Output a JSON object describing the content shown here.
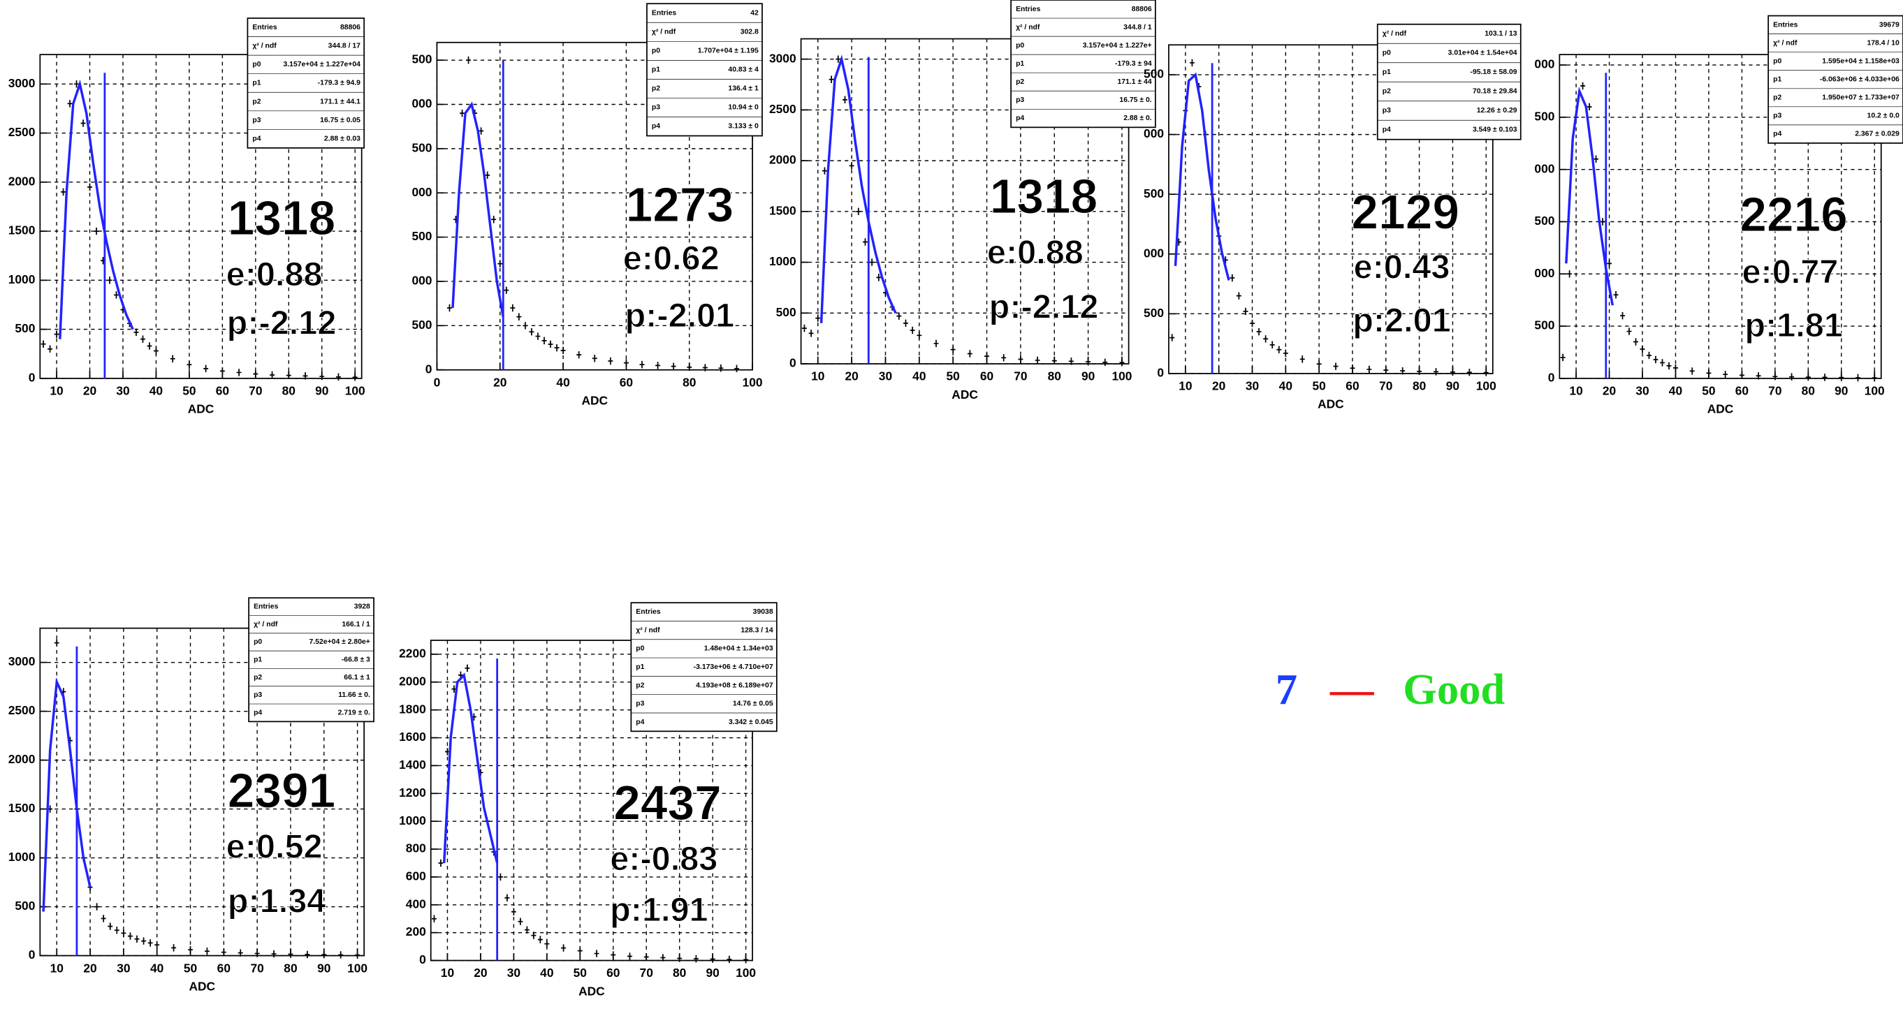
{
  "chart_data": [
    {
      "type": "histogram",
      "x_label": "ADC",
      "xlim": [
        5,
        102
      ],
      "xticks": [
        10,
        20,
        30,
        40,
        50,
        60,
        70,
        80,
        90,
        100
      ],
      "ylim": [
        0,
        3300
      ],
      "yticks": [
        0,
        500,
        1000,
        1500,
        2000,
        2500,
        3000
      ],
      "grid": true,
      "x": [
        6,
        8,
        10,
        12,
        14,
        16,
        18,
        20,
        22,
        24,
        26,
        28,
        30,
        32,
        34,
        36,
        38,
        40,
        45,
        50,
        55,
        60,
        65,
        70,
        75,
        80,
        85,
        90,
        95,
        100
      ],
      "values": [
        350,
        300,
        450,
        1900,
        2800,
        3000,
        2600,
        1950,
        1500,
        1200,
        1000,
        850,
        700,
        560,
        470,
        400,
        330,
        280,
        200,
        140,
        100,
        75,
        60,
        45,
        35,
        30,
        25,
        20,
        15,
        12
      ],
      "fit": {
        "color": "#2222ff",
        "x": [
          11,
          13,
          15,
          17,
          19,
          21,
          23,
          25,
          27,
          29,
          31,
          33
        ],
        "values": [
          400,
          1900,
          2800,
          3000,
          2700,
          2200,
          1750,
          1400,
          1100,
          850,
          650,
          500
        ]
      },
      "marker": 24.5,
      "stats": [
        [
          "Entries",
          "88806"
        ],
        [
          "χ² / ndf",
          "344.8 / 17"
        ],
        [
          "p0",
          "3.157e+04 ± 1.227e+04"
        ],
        [
          "p1",
          "-179.3 ± 94.9"
        ],
        [
          "p2",
          "171.1 ± 44.1"
        ],
        [
          "p3",
          "16.75 ± 0.05"
        ],
        [
          "p4",
          "2.88 ± 0.03"
        ]
      ],
      "annotations": [
        "1318",
        "e:0.88",
        "p:-2.12"
      ]
    },
    {
      "type": "histogram",
      "x_label": "ADC",
      "xlim": [
        0,
        100
      ],
      "xticks": [
        0,
        20,
        40,
        60,
        80,
        100
      ],
      "ylim": [
        0,
        3700
      ],
      "yticks": [
        0,
        500,
        {
          "value": 1000,
          "label": "000"
        },
        {
          "value": 1500,
          "label": "500"
        },
        {
          "value": 2000,
          "label": "000"
        },
        {
          "value": 2500,
          "label": "500"
        },
        {
          "value": 3000,
          "label": "000"
        },
        {
          "value": 3500,
          "label": "500"
        }
      ],
      "grid": true,
      "x": [
        4,
        6,
        8,
        10,
        12,
        14,
        16,
        18,
        20,
        22,
        24,
        26,
        28,
        30,
        32,
        34,
        36,
        38,
        40,
        45,
        50,
        55,
        60,
        65,
        70,
        75,
        80,
        85,
        90,
        95
      ],
      "values": [
        700,
        1700,
        2900,
        3500,
        2900,
        2700,
        2200,
        1700,
        1200,
        900,
        700,
        600,
        500,
        430,
        380,
        330,
        290,
        250,
        220,
        170,
        130,
        100,
        80,
        60,
        50,
        40,
        30,
        25,
        20,
        15
      ],
      "fit": {
        "color": "#2222ff",
        "x": [
          5,
          7,
          9,
          11,
          13,
          15,
          17,
          19,
          21
        ],
        "values": [
          700,
          2000,
          2900,
          3000,
          2700,
          2200,
          1600,
          1000,
          600
        ]
      },
      "marker": 21,
      "stats": [
        [
          "Entries",
          "42"
        ],
        [
          "χ² / ndf",
          "302.8"
        ],
        [
          "p0",
          "1.707e+04 ± 1.195"
        ],
        [
          "p1",
          "40.83 ± 4"
        ],
        [
          "p2",
          "136.4 ± 1"
        ],
        [
          "p3",
          "10.94 ± 0"
        ],
        [
          "p4",
          "3.133 ± 0"
        ]
      ],
      "annotations": [
        "1273",
        "e:0.62",
        "p:-2.01"
      ]
    },
    {
      "type": "histogram",
      "x_label": "ADC",
      "xlim": [
        5,
        102
      ],
      "xticks": [
        10,
        20,
        30,
        40,
        50,
        60,
        70,
        80,
        90,
        100
      ],
      "ylim": [
        0,
        3200
      ],
      "yticks": [
        0,
        500,
        1000,
        1500,
        2000,
        2500,
        3000
      ],
      "grid": true,
      "x": [
        6,
        8,
        10,
        12,
        14,
        16,
        18,
        20,
        22,
        24,
        26,
        28,
        30,
        32,
        34,
        36,
        38,
        40,
        45,
        50,
        55,
        60,
        65,
        70,
        75,
        80,
        85,
        90,
        95,
        100
      ],
      "values": [
        350,
        300,
        450,
        1900,
        2800,
        3000,
        2600,
        1950,
        1500,
        1200,
        1000,
        850,
        700,
        560,
        470,
        400,
        330,
        280,
        200,
        140,
        100,
        75,
        60,
        45,
        35,
        30,
        25,
        20,
        15,
        12
      ],
      "fit": {
        "color": "#2222ff",
        "x": [
          11,
          13,
          15,
          17,
          19,
          21,
          23,
          25,
          27,
          29,
          31,
          33
        ],
        "values": [
          400,
          1900,
          2800,
          3000,
          2700,
          2200,
          1750,
          1400,
          1100,
          850,
          650,
          500
        ]
      },
      "marker": 25,
      "stats": [
        [
          "Entries",
          "88806"
        ],
        [
          "χ² / ndf",
          "344.8 / 1"
        ],
        [
          "p0",
          "3.157e+04 ± 1.227e+"
        ],
        [
          "p1",
          "-179.3 ± 94"
        ],
        [
          "p2",
          "171.1 ± 44"
        ],
        [
          "p3",
          "16.75 ± 0."
        ],
        [
          "p4",
          "2.88 ± 0."
        ]
      ],
      "annotations": [
        "1318",
        "e:0.88",
        "p:-2.12"
      ]
    },
    {
      "type": "histogram",
      "x_label": "ADC",
      "xlim": [
        5,
        102
      ],
      "xticks": [
        10,
        20,
        30,
        40,
        50,
        60,
        70,
        80,
        90,
        100
      ],
      "ylim": [
        0,
        2750
      ],
      "yticks": [
        0,
        500,
        {
          "value": 1000,
          "label": "000"
        },
        {
          "value": 1500,
          "label": "500"
        },
        {
          "value": 2000,
          "label": "000"
        },
        {
          "value": 2500,
          "label": "500"
        }
      ],
      "grid": true,
      "x": [
        6,
        8,
        10,
        12,
        14,
        16,
        18,
        20,
        22,
        24,
        26,
        28,
        30,
        32,
        34,
        36,
        38,
        40,
        45,
        50,
        55,
        60,
        65,
        70,
        75,
        80,
        85,
        90,
        95,
        100
      ],
      "values": [
        300,
        1100,
        2200,
        2600,
        2400,
        2000,
        1500,
        1150,
        950,
        800,
        650,
        520,
        420,
        350,
        290,
        240,
        200,
        170,
        120,
        80,
        60,
        45,
        35,
        28,
        22,
        18,
        15,
        12,
        10,
        8
      ],
      "fit": {
        "color": "#2222ff",
        "x": [
          7,
          9,
          11,
          13,
          15,
          17,
          19,
          21,
          23
        ],
        "values": [
          900,
          1900,
          2450,
          2500,
          2200,
          1700,
          1300,
          1000,
          780
        ]
      },
      "marker": 18,
      "stats": [
        [
          "χ² / ndf",
          "103.1 / 13"
        ],
        [
          "p0",
          "3.01e+04 ± 1.54e+04"
        ],
        [
          "p1",
          "-95.18 ± 58.09"
        ],
        [
          "p2",
          "70.18 ± 29.84"
        ],
        [
          "p3",
          "12.26 ± 0.29"
        ],
        [
          "p4",
          "3.549 ± 0.103"
        ]
      ],
      "annotations": [
        "2129",
        "e:0.43",
        "p:2.01"
      ]
    },
    {
      "type": "histogram",
      "x_label": "ADC",
      "xlim": [
        5,
        102
      ],
      "xticks": [
        10,
        20,
        30,
        40,
        50,
        60,
        70,
        80,
        90,
        100
      ],
      "ylim": [
        0,
        3100
      ],
      "yticks": [
        0,
        500,
        {
          "value": 1000,
          "label": "000"
        },
        {
          "value": 1500,
          "label": "500"
        },
        {
          "value": 2000,
          "label": "000"
        },
        {
          "value": 2500,
          "label": "500"
        },
        {
          "value": 3000,
          "label": "000"
        }
      ],
      "grid": true,
      "x": [
        6,
        8,
        10,
        12,
        14,
        16,
        18,
        20,
        22,
        24,
        26,
        28,
        30,
        32,
        34,
        36,
        38,
        40,
        45,
        50,
        55,
        60,
        65,
        70,
        75,
        80,
        85,
        90,
        95,
        100
      ],
      "values": [
        200,
        1000,
        2500,
        2800,
        2600,
        2100,
        1500,
        1100,
        800,
        600,
        450,
        350,
        280,
        220,
        180,
        150,
        120,
        100,
        70,
        50,
        38,
        30,
        24,
        18,
        15,
        12,
        10,
        8,
        6,
        5
      ],
      "fit": {
        "color": "#2222ff",
        "x": [
          7,
          9,
          11,
          13,
          15,
          17,
          19,
          21
        ],
        "values": [
          1100,
          2300,
          2750,
          2600,
          2100,
          1500,
          1050,
          700
        ]
      },
      "marker": 19,
      "stats": [
        [
          "Entries",
          "39679"
        ],
        [
          "χ² / ndf",
          "178.4 / 10"
        ],
        [
          "p0",
          "1.595e+04 ± 1.158e+03"
        ],
        [
          "p1",
          "-6.063e+06 ± 4.033e+06"
        ],
        [
          "p2",
          "1.950e+07 ± 1.733e+07"
        ],
        [
          "p3",
          "10.2 ± 0.0"
        ],
        [
          "p4",
          "2.367 ± 0.029"
        ]
      ],
      "annotations": [
        "2216",
        "e:0.77",
        "p:1.81"
      ]
    },
    {
      "type": "histogram",
      "x_label": "ADC",
      "xlim": [
        5,
        102
      ],
      "xticks": [
        10,
        20,
        30,
        40,
        50,
        60,
        70,
        80,
        90,
        100
      ],
      "ylim": [
        0,
        3350
      ],
      "yticks": [
        0,
        500,
        1000,
        1500,
        2000,
        2500,
        3000
      ],
      "grid": true,
      "x": [
        6,
        8,
        10,
        12,
        14,
        16,
        18,
        20,
        22,
        24,
        26,
        28,
        30,
        32,
        34,
        36,
        38,
        40,
        45,
        50,
        55,
        60,
        65,
        70,
        75,
        80,
        85,
        90,
        95,
        100
      ],
      "values": [
        500,
        1500,
        3200,
        2700,
        2200,
        1500,
        1000,
        700,
        500,
        380,
        300,
        260,
        230,
        200,
        170,
        150,
        130,
        110,
        80,
        60,
        45,
        35,
        28,
        22,
        18,
        15,
        12,
        10,
        8,
        6
      ],
      "fit": {
        "color": "#2222ff",
        "x": [
          6,
          8,
          10,
          12,
          14,
          16,
          18,
          20
        ],
        "values": [
          450,
          2100,
          2800,
          2650,
          2100,
          1500,
          1000,
          700
        ]
      },
      "marker": 16,
      "stats": [
        [
          "Entries",
          "3928"
        ],
        [
          "χ² / ndf",
          "166.1 / 1"
        ],
        [
          "p0",
          "7.52e+04 ± 2.80e+"
        ],
        [
          "p1",
          "-66.8 ± 3"
        ],
        [
          "p2",
          "66.1 ± 1"
        ],
        [
          "p3",
          "11.66 ± 0."
        ],
        [
          "p4",
          "2.719 ± 0."
        ]
      ],
      "annotations": [
        "2391",
        "e:0.52",
        "p:1.34"
      ]
    },
    {
      "type": "histogram",
      "x_label": "ADC",
      "xlim": [
        5,
        102
      ],
      "xticks": [
        10,
        20,
        30,
        40,
        50,
        60,
        70,
        80,
        90,
        100
      ],
      "ylim": [
        0,
        2300
      ],
      "yticks": [
        0,
        200,
        400,
        600,
        800,
        1000,
        1200,
        1400,
        1600,
        1800,
        2000,
        2200
      ],
      "grid": true,
      "x": [
        6,
        8,
        10,
        12,
        14,
        16,
        18,
        20,
        22,
        24,
        26,
        28,
        30,
        32,
        34,
        36,
        38,
        40,
        45,
        50,
        55,
        60,
        65,
        70,
        75,
        80,
        85,
        90,
        95,
        100
      ],
      "values": [
        300,
        700,
        1500,
        1950,
        2050,
        2100,
        1750,
        1350,
        1000,
        780,
        600,
        450,
        350,
        280,
        220,
        180,
        150,
        120,
        90,
        70,
        50,
        40,
        30,
        25,
        20,
        15,
        12,
        10,
        8,
        6
      ],
      "fit": {
        "color": "#2222ff",
        "x": [
          9,
          11,
          13,
          15,
          17,
          19,
          21,
          23,
          25
        ],
        "values": [
          700,
          1600,
          2000,
          2050,
          1800,
          1450,
          1100,
          900,
          700
        ]
      },
      "marker": 25,
      "stats": [
        [
          "Entries",
          "39038"
        ],
        [
          "χ² / ndf",
          "128.3 / 14"
        ],
        [
          "p0",
          "1.48e+04 ± 1.34e+03"
        ],
        [
          "p1",
          "-3.173e+06 ± 4.710e+07"
        ],
        [
          "p2",
          "4.193e+08 ± 6.189e+07"
        ],
        [
          "p3",
          "14.76 ± 0.05"
        ],
        [
          "p4",
          "3.342 ± 0.045"
        ]
      ],
      "annotations": [
        "2437",
        "e:-0.83",
        "p:1.91"
      ]
    }
  ],
  "verdict": {
    "count": "7",
    "dash": "—",
    "label": "Good"
  }
}
